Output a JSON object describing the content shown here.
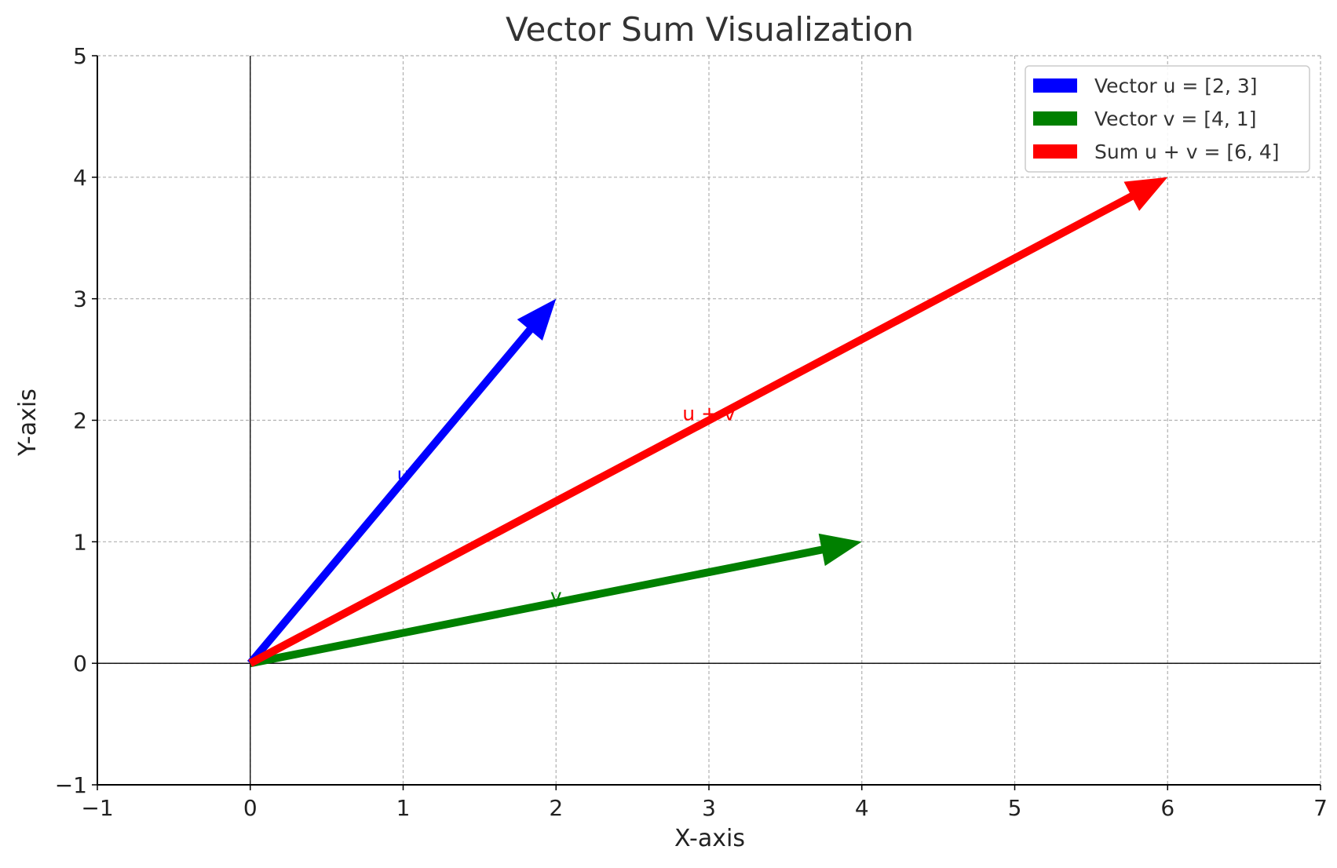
{
  "chart_data": {
    "type": "vector",
    "title": "Vector Sum Visualization",
    "xlabel": "X-axis",
    "ylabel": "Y-axis",
    "xlim": [
      -1,
      7
    ],
    "ylim": [
      -1,
      5
    ],
    "xticks": [
      -1,
      0,
      1,
      2,
      3,
      4,
      5,
      6,
      7
    ],
    "yticks": [
      -1,
      0,
      1,
      2,
      3,
      4,
      5
    ],
    "xtick_labels": [
      "−1",
      "0",
      "1",
      "2",
      "3",
      "4",
      "5",
      "6",
      "7"
    ],
    "ytick_labels": [
      "−1",
      "0",
      "1",
      "2",
      "3",
      "4",
      "5"
    ],
    "grid": true,
    "legend_position": "top-right",
    "series": [
      {
        "name": "Vector u = [2, 3]",
        "label": "u",
        "origin": [
          0,
          0
        ],
        "vector": [
          2,
          3
        ],
        "color": "#0000ff"
      },
      {
        "name": "Vector v = [4, 1]",
        "label": "v",
        "origin": [
          0,
          0
        ],
        "vector": [
          4,
          1
        ],
        "color": "#008000"
      },
      {
        "name": "Sum u + v = [6, 4]",
        "label": "u + v",
        "origin": [
          0,
          0
        ],
        "vector": [
          6,
          4
        ],
        "color": "#ff0000"
      }
    ]
  }
}
